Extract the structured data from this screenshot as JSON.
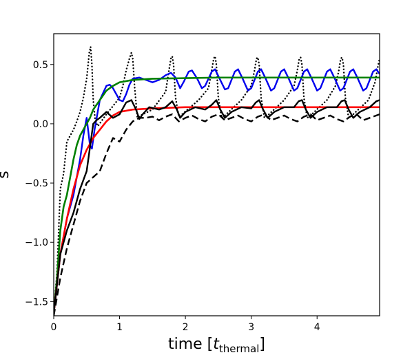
{
  "chart_data": {
    "type": "line",
    "xlabel": {
      "main": "time [",
      "var": "t",
      "sub": "thermal",
      "close": "]"
    },
    "ylabel": "s",
    "xlim": [
      0,
      4.95
    ],
    "ylim": [
      -1.62,
      0.76
    ],
    "x_ticks": [
      0,
      1,
      2,
      3,
      4
    ],
    "y_ticks": [
      0.5,
      0.0,
      -0.5,
      -1.0,
      -1.5
    ],
    "y_tick_labels": [
      "0.5",
      "0.0",
      "−0.5",
      "−1.0",
      "−1.5"
    ],
    "legend": "none",
    "grid": false,
    "series": [
      {
        "color": "#000000",
        "style": "dotted",
        "width": 2.4,
        "points": [
          [
            0.0,
            -1.6
          ],
          [
            0.05,
            -1.25
          ],
          [
            0.1,
            -0.55
          ],
          [
            0.15,
            -0.42
          ],
          [
            0.2,
            -0.15
          ],
          [
            0.25,
            -0.1
          ],
          [
            0.3,
            -0.05
          ],
          [
            0.35,
            0.02
          ],
          [
            0.4,
            0.1
          ],
          [
            0.45,
            0.22
          ],
          [
            0.5,
            0.38
          ],
          [
            0.54,
            0.6
          ],
          [
            0.56,
            0.65
          ],
          [
            0.58,
            0.5
          ],
          [
            0.6,
            0.2
          ],
          [
            0.63,
            0.03
          ],
          [
            0.67,
            -0.02
          ],
          [
            0.8,
            0.08
          ],
          [
            0.9,
            0.15
          ],
          [
            1.0,
            0.22
          ],
          [
            1.05,
            0.32
          ],
          [
            1.1,
            0.45
          ],
          [
            1.15,
            0.55
          ],
          [
            1.18,
            0.6
          ],
          [
            1.2,
            0.55
          ],
          [
            1.23,
            0.3
          ],
          [
            1.27,
            0.05
          ],
          [
            1.32,
            0.07
          ],
          [
            1.5,
            0.12
          ],
          [
            1.7,
            0.27
          ],
          [
            1.75,
            0.45
          ],
          [
            1.78,
            0.55
          ],
          [
            1.8,
            0.57
          ],
          [
            1.82,
            0.5
          ],
          [
            1.85,
            0.22
          ],
          [
            1.9,
            0.06
          ],
          [
            1.95,
            0.08
          ],
          [
            2.2,
            0.2
          ],
          [
            2.35,
            0.3
          ],
          [
            2.4,
            0.45
          ],
          [
            2.43,
            0.55
          ],
          [
            2.45,
            0.57
          ],
          [
            2.47,
            0.5
          ],
          [
            2.5,
            0.22
          ],
          [
            2.55,
            0.05
          ],
          [
            2.6,
            0.07
          ],
          [
            2.85,
            0.2
          ],
          [
            3.0,
            0.32
          ],
          [
            3.05,
            0.45
          ],
          [
            3.08,
            0.55
          ],
          [
            3.1,
            0.56
          ],
          [
            3.12,
            0.5
          ],
          [
            3.15,
            0.22
          ],
          [
            3.2,
            0.05
          ],
          [
            3.25,
            0.07
          ],
          [
            3.5,
            0.2
          ],
          [
            3.65,
            0.32
          ],
          [
            3.7,
            0.45
          ],
          [
            3.73,
            0.55
          ],
          [
            3.75,
            0.56
          ],
          [
            3.77,
            0.5
          ],
          [
            3.8,
            0.22
          ],
          [
            3.85,
            0.05
          ],
          [
            3.9,
            0.07
          ],
          [
            4.15,
            0.2
          ],
          [
            4.28,
            0.32
          ],
          [
            4.33,
            0.45
          ],
          [
            4.36,
            0.55
          ],
          [
            4.38,
            0.56
          ],
          [
            4.4,
            0.5
          ],
          [
            4.43,
            0.22
          ],
          [
            4.48,
            0.05
          ],
          [
            4.53,
            0.07
          ],
          [
            4.78,
            0.2
          ],
          [
            4.88,
            0.35
          ],
          [
            4.93,
            0.5
          ],
          [
            4.95,
            0.55
          ]
        ]
      },
      {
        "color": "#0000ee",
        "style": "solid",
        "width": 2.4,
        "points": [
          [
            0.0,
            -1.6
          ],
          [
            0.1,
            -1.1
          ],
          [
            0.2,
            -0.8
          ],
          [
            0.3,
            -0.6
          ],
          [
            0.4,
            -0.3
          ],
          [
            0.45,
            -0.1
          ],
          [
            0.5,
            0.05
          ],
          [
            0.55,
            -0.18
          ],
          [
            0.58,
            -0.21
          ],
          [
            0.62,
            -0.05
          ],
          [
            0.7,
            0.2
          ],
          [
            0.8,
            0.32
          ],
          [
            0.85,
            0.33
          ],
          [
            0.9,
            0.3
          ],
          [
            0.95,
            0.25
          ],
          [
            1.0,
            0.2
          ],
          [
            1.05,
            0.19
          ],
          [
            1.1,
            0.25
          ],
          [
            1.15,
            0.33
          ],
          [
            1.2,
            0.38
          ],
          [
            1.3,
            0.39
          ],
          [
            1.4,
            0.37
          ],
          [
            1.5,
            0.35
          ],
          [
            1.6,
            0.37
          ],
          [
            1.7,
            0.41
          ],
          [
            1.78,
            0.43
          ],
          [
            1.85,
            0.39
          ],
          [
            1.92,
            0.3
          ],
          [
            1.98,
            0.36
          ],
          [
            2.05,
            0.44
          ],
          [
            2.1,
            0.45
          ],
          [
            2.18,
            0.38
          ],
          [
            2.25,
            0.3
          ],
          [
            2.3,
            0.32
          ],
          [
            2.4,
            0.44
          ],
          [
            2.45,
            0.46
          ],
          [
            2.52,
            0.38
          ],
          [
            2.6,
            0.29
          ],
          [
            2.65,
            0.3
          ],
          [
            2.75,
            0.44
          ],
          [
            2.8,
            0.46
          ],
          [
            2.87,
            0.38
          ],
          [
            2.95,
            0.28
          ],
          [
            3.0,
            0.3
          ],
          [
            3.1,
            0.44
          ],
          [
            3.15,
            0.46
          ],
          [
            3.22,
            0.38
          ],
          [
            3.3,
            0.28
          ],
          [
            3.35,
            0.3
          ],
          [
            3.45,
            0.44
          ],
          [
            3.5,
            0.46
          ],
          [
            3.57,
            0.38
          ],
          [
            3.65,
            0.28
          ],
          [
            3.7,
            0.3
          ],
          [
            3.8,
            0.44
          ],
          [
            3.85,
            0.46
          ],
          [
            3.92,
            0.38
          ],
          [
            4.0,
            0.28
          ],
          [
            4.05,
            0.3
          ],
          [
            4.15,
            0.44
          ],
          [
            4.2,
            0.46
          ],
          [
            4.27,
            0.38
          ],
          [
            4.35,
            0.28
          ],
          [
            4.4,
            0.3
          ],
          [
            4.5,
            0.44
          ],
          [
            4.55,
            0.46
          ],
          [
            4.62,
            0.38
          ],
          [
            4.7,
            0.28
          ],
          [
            4.75,
            0.3
          ],
          [
            4.85,
            0.44
          ],
          [
            4.9,
            0.46
          ],
          [
            4.95,
            0.42
          ]
        ]
      },
      {
        "color": "#008000",
        "style": "solid",
        "width": 2.6,
        "points": [
          [
            0.0,
            -1.6
          ],
          [
            0.05,
            -1.3
          ],
          [
            0.1,
            -0.9
          ],
          [
            0.15,
            -0.7
          ],
          [
            0.2,
            -0.6
          ],
          [
            0.25,
            -0.45
          ],
          [
            0.3,
            -0.3
          ],
          [
            0.35,
            -0.18
          ],
          [
            0.4,
            -0.1
          ],
          [
            0.45,
            -0.05
          ],
          [
            0.5,
            0.0
          ],
          [
            0.55,
            0.05
          ],
          [
            0.6,
            0.12
          ],
          [
            0.7,
            0.2
          ],
          [
            0.8,
            0.28
          ],
          [
            0.9,
            0.32
          ],
          [
            1.0,
            0.35
          ],
          [
            1.2,
            0.37
          ],
          [
            1.5,
            0.38
          ],
          [
            2.0,
            0.385
          ],
          [
            2.5,
            0.39
          ],
          [
            3.0,
            0.39
          ],
          [
            3.5,
            0.39
          ],
          [
            4.0,
            0.39
          ],
          [
            4.5,
            0.39
          ],
          [
            4.95,
            0.39
          ]
        ]
      },
      {
        "color": "#ff0000",
        "style": "solid",
        "width": 2.6,
        "points": [
          [
            0.0,
            -1.6
          ],
          [
            0.1,
            -1.1
          ],
          [
            0.2,
            -0.8
          ],
          [
            0.3,
            -0.55
          ],
          [
            0.4,
            -0.35
          ],
          [
            0.5,
            -0.22
          ],
          [
            0.6,
            -0.12
          ],
          [
            0.7,
            -0.05
          ],
          [
            0.8,
            0.02
          ],
          [
            0.9,
            0.07
          ],
          [
            1.0,
            0.1
          ],
          [
            1.2,
            0.12
          ],
          [
            1.5,
            0.13
          ],
          [
            2.0,
            0.14
          ],
          [
            2.5,
            0.14
          ],
          [
            3.0,
            0.14
          ],
          [
            3.5,
            0.14
          ],
          [
            4.0,
            0.14
          ],
          [
            4.5,
            0.14
          ],
          [
            4.95,
            0.14
          ]
        ]
      },
      {
        "color": "#000000",
        "style": "solid",
        "width": 2.4,
        "points": [
          [
            0.0,
            -1.6
          ],
          [
            0.1,
            -1.1
          ],
          [
            0.2,
            -0.9
          ],
          [
            0.3,
            -0.75
          ],
          [
            0.4,
            -0.55
          ],
          [
            0.5,
            -0.4
          ],
          [
            0.55,
            -0.2
          ],
          [
            0.6,
            0.0
          ],
          [
            0.65,
            0.03
          ],
          [
            0.7,
            0.05
          ],
          [
            0.8,
            0.1
          ],
          [
            0.9,
            0.05
          ],
          [
            1.0,
            0.08
          ],
          [
            1.1,
            0.18
          ],
          [
            1.18,
            0.2
          ],
          [
            1.25,
            0.12
          ],
          [
            1.3,
            0.04
          ],
          [
            1.35,
            0.08
          ],
          [
            1.45,
            0.14
          ],
          [
            1.6,
            0.12
          ],
          [
            1.7,
            0.14
          ],
          [
            1.8,
            0.19
          ],
          [
            1.87,
            0.12
          ],
          [
            1.92,
            0.05
          ],
          [
            2.0,
            0.1
          ],
          [
            2.15,
            0.14
          ],
          [
            2.3,
            0.12
          ],
          [
            2.4,
            0.16
          ],
          [
            2.47,
            0.2
          ],
          [
            2.53,
            0.12
          ],
          [
            2.6,
            0.05
          ],
          [
            2.7,
            0.1
          ],
          [
            2.85,
            0.14
          ],
          [
            3.0,
            0.13
          ],
          [
            3.07,
            0.18
          ],
          [
            3.12,
            0.2
          ],
          [
            3.18,
            0.12
          ],
          [
            3.25,
            0.05
          ],
          [
            3.35,
            0.1
          ],
          [
            3.5,
            0.14
          ],
          [
            3.65,
            0.14
          ],
          [
            3.72,
            0.19
          ],
          [
            3.77,
            0.2
          ],
          [
            3.83,
            0.12
          ],
          [
            3.9,
            0.05
          ],
          [
            4.0,
            0.1
          ],
          [
            4.15,
            0.14
          ],
          [
            4.3,
            0.14
          ],
          [
            4.37,
            0.19
          ],
          [
            4.42,
            0.2
          ],
          [
            4.48,
            0.12
          ],
          [
            4.55,
            0.05
          ],
          [
            4.65,
            0.1
          ],
          [
            4.8,
            0.14
          ],
          [
            4.9,
            0.19
          ],
          [
            4.95,
            0.2
          ]
        ]
      },
      {
        "color": "#000000",
        "style": "dashed",
        "width": 2.4,
        "points": [
          [
            0.0,
            -1.62
          ],
          [
            0.1,
            -1.3
          ],
          [
            0.2,
            -1.05
          ],
          [
            0.3,
            -0.85
          ],
          [
            0.4,
            -0.65
          ],
          [
            0.5,
            -0.5
          ],
          [
            0.6,
            -0.45
          ],
          [
            0.7,
            -0.4
          ],
          [
            0.8,
            -0.25
          ],
          [
            0.9,
            -0.12
          ],
          [
            1.0,
            -0.15
          ],
          [
            1.1,
            -0.05
          ],
          [
            1.2,
            0.02
          ],
          [
            1.3,
            0.05
          ],
          [
            1.4,
            0.05
          ],
          [
            1.5,
            0.06
          ],
          [
            1.6,
            0.03
          ],
          [
            1.7,
            0.06
          ],
          [
            1.8,
            0.08
          ],
          [
            1.9,
            0.02
          ],
          [
            2.0,
            0.05
          ],
          [
            2.1,
            0.07
          ],
          [
            2.2,
            0.04
          ],
          [
            2.3,
            0.02
          ],
          [
            2.4,
            0.06
          ],
          [
            2.5,
            0.08
          ],
          [
            2.6,
            0.03
          ],
          [
            2.7,
            0.05
          ],
          [
            2.8,
            0.07
          ],
          [
            2.9,
            0.04
          ],
          [
            3.0,
            0.02
          ],
          [
            3.1,
            0.06
          ],
          [
            3.2,
            0.08
          ],
          [
            3.3,
            0.03
          ],
          [
            3.4,
            0.05
          ],
          [
            3.5,
            0.07
          ],
          [
            3.6,
            0.04
          ],
          [
            3.7,
            0.02
          ],
          [
            3.8,
            0.06
          ],
          [
            3.9,
            0.08
          ],
          [
            4.0,
            0.03
          ],
          [
            4.1,
            0.05
          ],
          [
            4.2,
            0.07
          ],
          [
            4.3,
            0.04
          ],
          [
            4.4,
            0.02
          ],
          [
            4.5,
            0.06
          ],
          [
            4.6,
            0.08
          ],
          [
            4.7,
            0.03
          ],
          [
            4.8,
            0.05
          ],
          [
            4.9,
            0.07
          ],
          [
            4.95,
            0.08
          ]
        ]
      }
    ]
  }
}
